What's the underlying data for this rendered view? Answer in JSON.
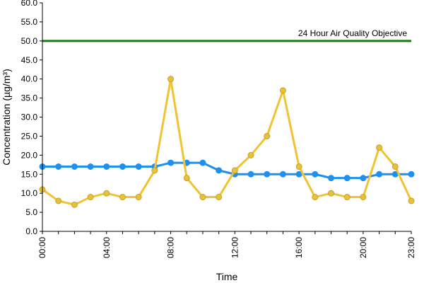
{
  "chart_data": {
    "type": "line",
    "xlabel": "Time",
    "ylabel": "Concentration (µg/m³)",
    "ylim": [
      0,
      60
    ],
    "yticks": [
      "0.0",
      "5.0",
      "10.0",
      "15.0",
      "20.0",
      "25.0",
      "30.0",
      "35.0",
      "40.0",
      "45.0",
      "50.0",
      "55.0",
      "60.0"
    ],
    "x_tick_labels": [
      {
        "hour": 0,
        "label": "00:00"
      },
      {
        "hour": 4,
        "label": "04:00"
      },
      {
        "hour": 8,
        "label": "08:00"
      },
      {
        "hour": 12,
        "label": "12:00"
      },
      {
        "hour": 16,
        "label": "16:00"
      },
      {
        "hour": 20,
        "label": "20:00"
      },
      {
        "hour": 23,
        "label": "23:00"
      }
    ],
    "x": [
      0,
      1,
      2,
      3,
      4,
      5,
      6,
      7,
      8,
      9,
      10,
      11,
      12,
      13,
      14,
      15,
      16,
      17,
      18,
      19,
      20,
      21,
      22,
      23
    ],
    "grid": false,
    "legend": "none",
    "objective": {
      "value": 50,
      "label": "24 Hour Air Quality Objective",
      "color": "#1a7a1a"
    },
    "series": [
      {
        "color": "#1e90ef",
        "marker_color": "#1e90ef",
        "values": [
          17,
          17,
          17,
          17,
          17,
          17,
          17,
          17,
          18,
          18,
          18,
          16,
          15,
          15,
          15,
          15,
          15,
          15,
          14,
          14,
          14,
          15,
          15,
          15
        ]
      },
      {
        "color": "#f1c232",
        "marker_color": "#e6c23a",
        "values": [
          11,
          8,
          7,
          9,
          10,
          9,
          9,
          16,
          40,
          14,
          9,
          9,
          16,
          20,
          25,
          37,
          17,
          9,
          10,
          9,
          9,
          22,
          17,
          8
        ]
      }
    ]
  }
}
